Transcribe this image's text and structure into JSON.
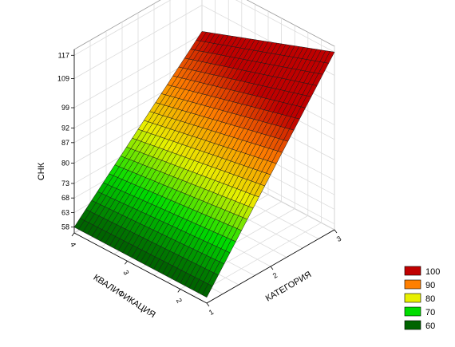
{
  "chart_data": {
    "type": "surface3d",
    "zlabel": "СНК",
    "xlabel": "КАТЕГОРИЯ",
    "ylabel": "КВАЛИФИКАЦИЯ",
    "x_ticks": [
      "1",
      "2",
      "3"
    ],
    "y_ticks": [
      "2",
      "3",
      "4"
    ],
    "z_ticks": [
      "58",
      "63",
      "68",
      "73",
      "80",
      "87",
      "92",
      "99",
      "109",
      "117"
    ],
    "xlim": [
      1,
      3
    ],
    "ylim": [
      1.5,
      4
    ],
    "zlim": [
      56,
      119
    ],
    "surface_corners": [
      {
        "x": 1,
        "y": 1.5,
        "z": 58
      },
      {
        "x": 3,
        "y": 1.5,
        "z": 117
      },
      {
        "x": 1,
        "y": 4,
        "z": 58
      },
      {
        "x": 3,
        "y": 4,
        "z": 100
      }
    ],
    "legend": [
      {
        "label": "100",
        "color": "#c00000"
      },
      {
        "label": "90",
        "color": "#ff7f00"
      },
      {
        "label": "80",
        "color": "#e8f000"
      },
      {
        "label": "70",
        "color": "#00dd00"
      },
      {
        "label": "60",
        "color": "#006400"
      }
    ],
    "legend_position": "bottom-right",
    "grid": true
  }
}
